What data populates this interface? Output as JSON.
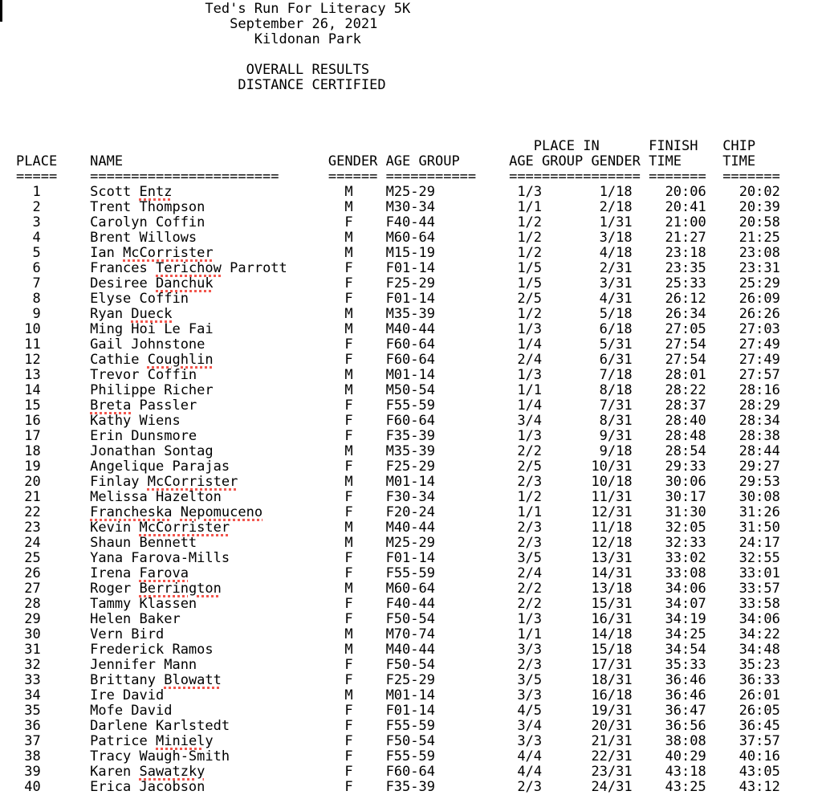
{
  "colors": {
    "text": "#000000",
    "background": "#ffffff",
    "spellcheck_underline": "#f2564d"
  },
  "cursor": {
    "visible": true
  },
  "title_block": [
    {
      "text": "Ted's Run For Literacy 5K",
      "col": 23
    },
    {
      "text": "September 26, 2021",
      "col": 26
    },
    {
      "text": "Kildonan Park",
      "col": 29
    },
    {
      "text": "",
      "col": 0
    },
    {
      "text": "OVERALL RESULTS",
      "col": 28
    },
    {
      "text": "DISTANCE CERTIFIED",
      "col": 27
    }
  ],
  "blank_lines_after_title": 3,
  "table": {
    "header_line1": [
      {
        "text": "PLACE IN",
        "col": 63
      },
      {
        "text": "FINISH",
        "col": 77
      },
      {
        "text": "CHIP",
        "col": 86
      }
    ],
    "header_line2": [
      {
        "text": "PLACE",
        "col": 0
      },
      {
        "text": "NAME",
        "col": 9
      },
      {
        "text": "GENDER",
        "col": 38
      },
      {
        "text": "AGE GROUP",
        "col": 45
      },
      {
        "text": "AGE GROUP GENDER",
        "col": 60
      },
      {
        "text": "TIME",
        "col": 77
      },
      {
        "text": "TIME",
        "col": 86
      }
    ],
    "separator_line": [
      {
        "text": "=====",
        "col": 0
      },
      {
        "text": "=======================",
        "col": 9
      },
      {
        "text": "======",
        "col": 38
      },
      {
        "text": "===========",
        "col": 45
      },
      {
        "text": "================",
        "col": 60
      },
      {
        "text": "=======",
        "col": 77
      },
      {
        "text": "=======",
        "col": 86
      }
    ],
    "rows": [
      {
        "place": 1,
        "name": "Scott Entz",
        "gender": "M",
        "age_group": "M25-29",
        "place_age_group": "1/3",
        "place_gender": "1/18",
        "finish_time": "20:06",
        "chip_time": "20:02",
        "misspelled": [
          "Entz"
        ]
      },
      {
        "place": 2,
        "name": "Trent Thompson",
        "gender": "M",
        "age_group": "M30-34",
        "place_age_group": "1/1",
        "place_gender": "2/18",
        "finish_time": "20:41",
        "chip_time": "20:39",
        "misspelled": []
      },
      {
        "place": 3,
        "name": "Carolyn Coffin",
        "gender": "F",
        "age_group": "F40-44",
        "place_age_group": "1/2",
        "place_gender": "1/31",
        "finish_time": "21:00",
        "chip_time": "20:58",
        "misspelled": []
      },
      {
        "place": 4,
        "name": "Brent Willows",
        "gender": "M",
        "age_group": "M60-64",
        "place_age_group": "1/2",
        "place_gender": "3/18",
        "finish_time": "21:27",
        "chip_time": "21:25",
        "misspelled": []
      },
      {
        "place": 5,
        "name": "Ian McCorrister",
        "gender": "M",
        "age_group": "M15-19",
        "place_age_group": "1/2",
        "place_gender": "4/18",
        "finish_time": "23:18",
        "chip_time": "23:08",
        "misspelled": [
          "McCorrister"
        ]
      },
      {
        "place": 6,
        "name": "Frances Terichow Parrott",
        "gender": "F",
        "age_group": "F01-14",
        "place_age_group": "1/5",
        "place_gender": "2/31",
        "finish_time": "23:35",
        "chip_time": "23:31",
        "misspelled": [
          "Terichow"
        ]
      },
      {
        "place": 7,
        "name": "Desiree Danchuk",
        "gender": "F",
        "age_group": "F25-29",
        "place_age_group": "1/5",
        "place_gender": "3/31",
        "finish_time": "25:33",
        "chip_time": "25:29",
        "misspelled": [
          "Danchuk"
        ]
      },
      {
        "place": 8,
        "name": "Elyse Coffin",
        "gender": "F",
        "age_group": "F01-14",
        "place_age_group": "2/5",
        "place_gender": "4/31",
        "finish_time": "26:12",
        "chip_time": "26:09",
        "misspelled": []
      },
      {
        "place": 9,
        "name": "Ryan Dueck",
        "gender": "M",
        "age_group": "M35-39",
        "place_age_group": "1/2",
        "place_gender": "5/18",
        "finish_time": "26:34",
        "chip_time": "26:26",
        "misspelled": [
          "Dueck"
        ]
      },
      {
        "place": 10,
        "name": "Ming Hoi Le Fai",
        "gender": "M",
        "age_group": "M40-44",
        "place_age_group": "1/3",
        "place_gender": "6/18",
        "finish_time": "27:05",
        "chip_time": "27:03",
        "misspelled": []
      },
      {
        "place": 11,
        "name": "Gail Johnstone",
        "gender": "F",
        "age_group": "F60-64",
        "place_age_group": "1/4",
        "place_gender": "5/31",
        "finish_time": "27:54",
        "chip_time": "27:49",
        "misspelled": []
      },
      {
        "place": 12,
        "name": "Cathie Coughlin",
        "gender": "F",
        "age_group": "F60-64",
        "place_age_group": "2/4",
        "place_gender": "6/31",
        "finish_time": "27:54",
        "chip_time": "27:49",
        "misspelled": [
          "Coughlin"
        ]
      },
      {
        "place": 13,
        "name": "Trevor Coffin",
        "gender": "M",
        "age_group": "M01-14",
        "place_age_group": "1/3",
        "place_gender": "7/18",
        "finish_time": "28:01",
        "chip_time": "27:57",
        "misspelled": []
      },
      {
        "place": 14,
        "name": "Philippe Richer",
        "gender": "M",
        "age_group": "M50-54",
        "place_age_group": "1/1",
        "place_gender": "8/18",
        "finish_time": "28:22",
        "chip_time": "28:16",
        "misspelled": []
      },
      {
        "place": 15,
        "name": "Breta Passler",
        "gender": "F",
        "age_group": "F55-59",
        "place_age_group": "1/4",
        "place_gender": "7/31",
        "finish_time": "28:37",
        "chip_time": "28:29",
        "misspelled": [
          "Breta"
        ]
      },
      {
        "place": 16,
        "name": "Kathy Wiens",
        "gender": "F",
        "age_group": "F60-64",
        "place_age_group": "3/4",
        "place_gender": "8/31",
        "finish_time": "28:40",
        "chip_time": "28:34",
        "misspelled": []
      },
      {
        "place": 17,
        "name": "Erin Dunsmore",
        "gender": "F",
        "age_group": "F35-39",
        "place_age_group": "1/3",
        "place_gender": "9/31",
        "finish_time": "28:48",
        "chip_time": "28:38",
        "misspelled": []
      },
      {
        "place": 18,
        "name": "Jonathan Sontag",
        "gender": "M",
        "age_group": "M35-39",
        "place_age_group": "2/2",
        "place_gender": "9/18",
        "finish_time": "28:54",
        "chip_time": "28:44",
        "misspelled": []
      },
      {
        "place": 19,
        "name": "Angelique Parajas",
        "gender": "F",
        "age_group": "F25-29",
        "place_age_group": "2/5",
        "place_gender": "10/31",
        "finish_time": "29:33",
        "chip_time": "29:27",
        "misspelled": []
      },
      {
        "place": 20,
        "name": "Finlay McCorrister",
        "gender": "M",
        "age_group": "M01-14",
        "place_age_group": "2/3",
        "place_gender": "10/18",
        "finish_time": "30:06",
        "chip_time": "29:53",
        "misspelled": [
          "McCorrister"
        ]
      },
      {
        "place": 21,
        "name": "Melissa Hazelton",
        "gender": "F",
        "age_group": "F30-34",
        "place_age_group": "1/2",
        "place_gender": "11/31",
        "finish_time": "30:17",
        "chip_time": "30:08",
        "misspelled": []
      },
      {
        "place": 22,
        "name": "Francheska Nepomuceno",
        "gender": "F",
        "age_group": "F20-24",
        "place_age_group": "1/1",
        "place_gender": "12/31",
        "finish_time": "31:30",
        "chip_time": "31:26",
        "misspelled": [
          "Francheska",
          "Nepomuceno"
        ]
      },
      {
        "place": 23,
        "name": "Kevin McCorrister",
        "gender": "M",
        "age_group": "M40-44",
        "place_age_group": "2/3",
        "place_gender": "11/18",
        "finish_time": "32:05",
        "chip_time": "31:50",
        "misspelled": [
          "McCorrister"
        ]
      },
      {
        "place": 24,
        "name": "Shaun Bennett",
        "gender": "M",
        "age_group": "M25-29",
        "place_age_group": "2/3",
        "place_gender": "12/18",
        "finish_time": "32:33",
        "chip_time": "24:17",
        "misspelled": []
      },
      {
        "place": 25,
        "name": "Yana Farova-Mills",
        "gender": "F",
        "age_group": "F01-14",
        "place_age_group": "3/5",
        "place_gender": "13/31",
        "finish_time": "33:02",
        "chip_time": "32:55",
        "misspelled": []
      },
      {
        "place": 26,
        "name": "Irena Farova",
        "gender": "F",
        "age_group": "F55-59",
        "place_age_group": "2/4",
        "place_gender": "14/31",
        "finish_time": "33:08",
        "chip_time": "33:01",
        "misspelled": [
          "Farova"
        ]
      },
      {
        "place": 27,
        "name": "Roger Berrington",
        "gender": "M",
        "age_group": "M60-64",
        "place_age_group": "2/2",
        "place_gender": "13/18",
        "finish_time": "34:06",
        "chip_time": "33:57",
        "misspelled": [
          "Berrington"
        ]
      },
      {
        "place": 28,
        "name": "Tammy Klassen",
        "gender": "F",
        "age_group": "F40-44",
        "place_age_group": "2/2",
        "place_gender": "15/31",
        "finish_time": "34:07",
        "chip_time": "33:58",
        "misspelled": []
      },
      {
        "place": 29,
        "name": "Helen Baker",
        "gender": "F",
        "age_group": "F50-54",
        "place_age_group": "1/3",
        "place_gender": "16/31",
        "finish_time": "34:19",
        "chip_time": "34:06",
        "misspelled": []
      },
      {
        "place": 30,
        "name": "Vern Bird",
        "gender": "M",
        "age_group": "M70-74",
        "place_age_group": "1/1",
        "place_gender": "14/18",
        "finish_time": "34:25",
        "chip_time": "34:22",
        "misspelled": []
      },
      {
        "place": 31,
        "name": "Frederick Ramos",
        "gender": "M",
        "age_group": "M40-44",
        "place_age_group": "3/3",
        "place_gender": "15/18",
        "finish_time": "34:54",
        "chip_time": "34:48",
        "misspelled": []
      },
      {
        "place": 32,
        "name": "Jennifer Mann",
        "gender": "F",
        "age_group": "F50-54",
        "place_age_group": "2/3",
        "place_gender": "17/31",
        "finish_time": "35:33",
        "chip_time": "35:23",
        "misspelled": []
      },
      {
        "place": 33,
        "name": "Brittany Blowatt",
        "gender": "F",
        "age_group": "F25-29",
        "place_age_group": "3/5",
        "place_gender": "18/31",
        "finish_time": "36:46",
        "chip_time": "36:33",
        "misspelled": [
          "Blowatt"
        ]
      },
      {
        "place": 34,
        "name": "Ire David",
        "gender": "M",
        "age_group": "M01-14",
        "place_age_group": "3/3",
        "place_gender": "16/18",
        "finish_time": "36:46",
        "chip_time": "26:01",
        "misspelled": []
      },
      {
        "place": 35,
        "name": "Mofe David",
        "gender": "F",
        "age_group": "F01-14",
        "place_age_group": "4/5",
        "place_gender": "19/31",
        "finish_time": "36:47",
        "chip_time": "26:05",
        "misspelled": []
      },
      {
        "place": 36,
        "name": "Darlene Karlstedt",
        "gender": "F",
        "age_group": "F55-59",
        "place_age_group": "3/4",
        "place_gender": "20/31",
        "finish_time": "36:56",
        "chip_time": "36:45",
        "misspelled": []
      },
      {
        "place": 37,
        "name": "Patrice Miniely",
        "gender": "F",
        "age_group": "F50-54",
        "place_age_group": "3/3",
        "place_gender": "21/31",
        "finish_time": "38:08",
        "chip_time": "37:57",
        "misspelled": [
          "Miniely"
        ]
      },
      {
        "place": 38,
        "name": "Tracy Waugh-Smith",
        "gender": "F",
        "age_group": "F55-59",
        "place_age_group": "4/4",
        "place_gender": "22/31",
        "finish_time": "40:29",
        "chip_time": "40:16",
        "misspelled": []
      },
      {
        "place": 39,
        "name": "Karen Sawatzky",
        "gender": "F",
        "age_group": "F60-64",
        "place_age_group": "4/4",
        "place_gender": "23/31",
        "finish_time": "43:18",
        "chip_time": "43:05",
        "misspelled": [
          "Sawatzky"
        ]
      },
      {
        "place": 40,
        "name": "Erica Jacobson",
        "gender": "F",
        "age_group": "F35-39",
        "place_age_group": "2/3",
        "place_gender": "24/31",
        "finish_time": "43:25",
        "chip_time": "43:12",
        "misspelled": []
      }
    ]
  }
}
